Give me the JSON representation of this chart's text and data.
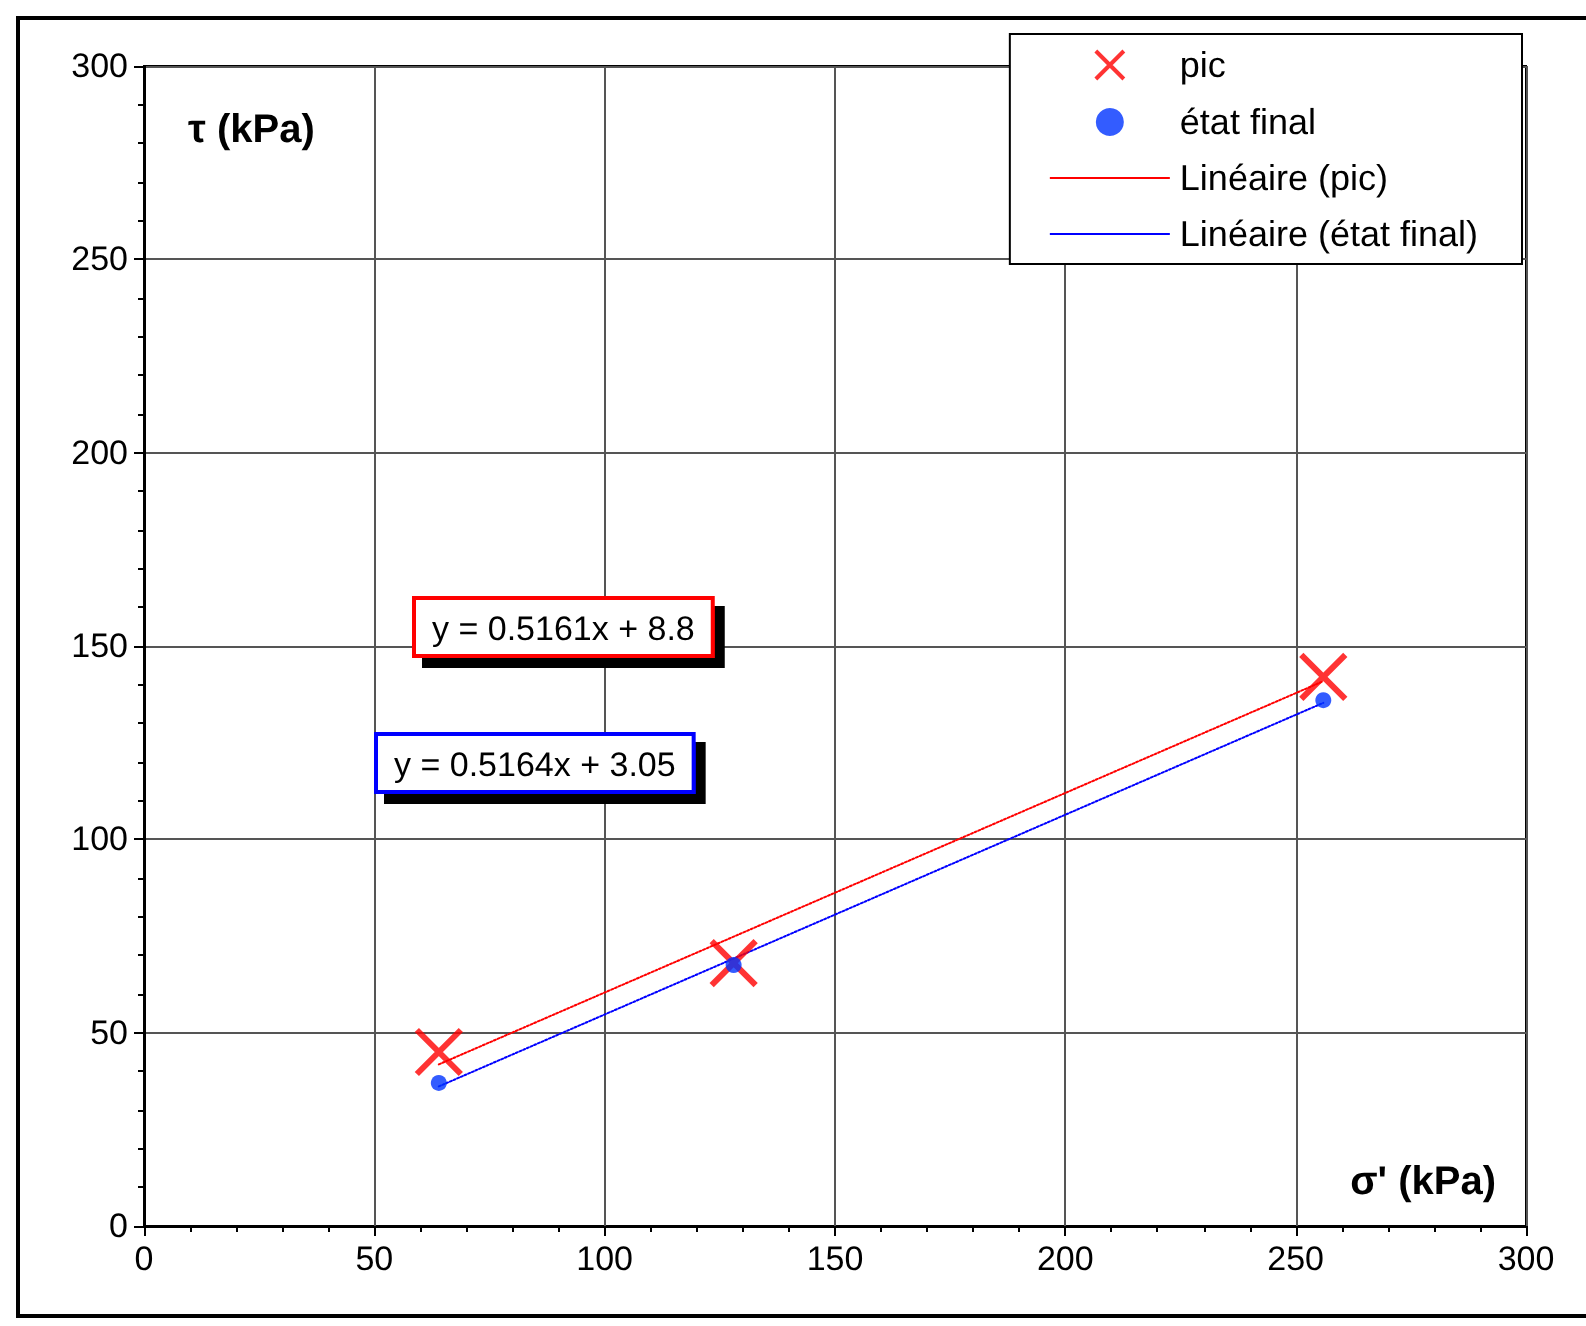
{
  "chart_data": {
    "type": "scatter",
    "xlabel": "σ' (kPa)",
    "ylabel": "τ (kPa)",
    "xlim": [
      0,
      300
    ],
    "xticks": [
      0,
      50,
      100,
      150,
      200,
      250,
      300
    ],
    "ylim": [
      0,
      300
    ],
    "yticks": [
      0,
      50,
      100,
      150,
      200,
      250,
      300
    ],
    "grid": true,
    "legend": "top right",
    "annotations": [
      "y = 0.5161x + 8.8",
      "y = 0.5164x + 3.05"
    ],
    "series": [
      {
        "name": "pic",
        "marker": "cross",
        "color": "#ff0000",
        "x": [
          64,
          128,
          256
        ],
        "values": [
          45,
          68,
          142
        ]
      },
      {
        "name": "état final",
        "marker": "circle",
        "color": "#0033ff",
        "x": [
          64,
          128,
          256
        ],
        "values": [
          37,
          67.5,
          136
        ]
      },
      {
        "name": "Linéaire (pic)",
        "type": "line",
        "marker": "none",
        "line_style": "dotted",
        "color": "#ff0000",
        "x": [
          64,
          256
        ],
        "values": [
          41.8,
          140.9
        ]
      },
      {
        "name": "Linéaire (état final)",
        "type": "line",
        "marker": "none",
        "line_style": "dotted",
        "color": "#0000ff",
        "x": [
          64,
          256
        ],
        "values": [
          36.1,
          135.3
        ]
      }
    ]
  }
}
